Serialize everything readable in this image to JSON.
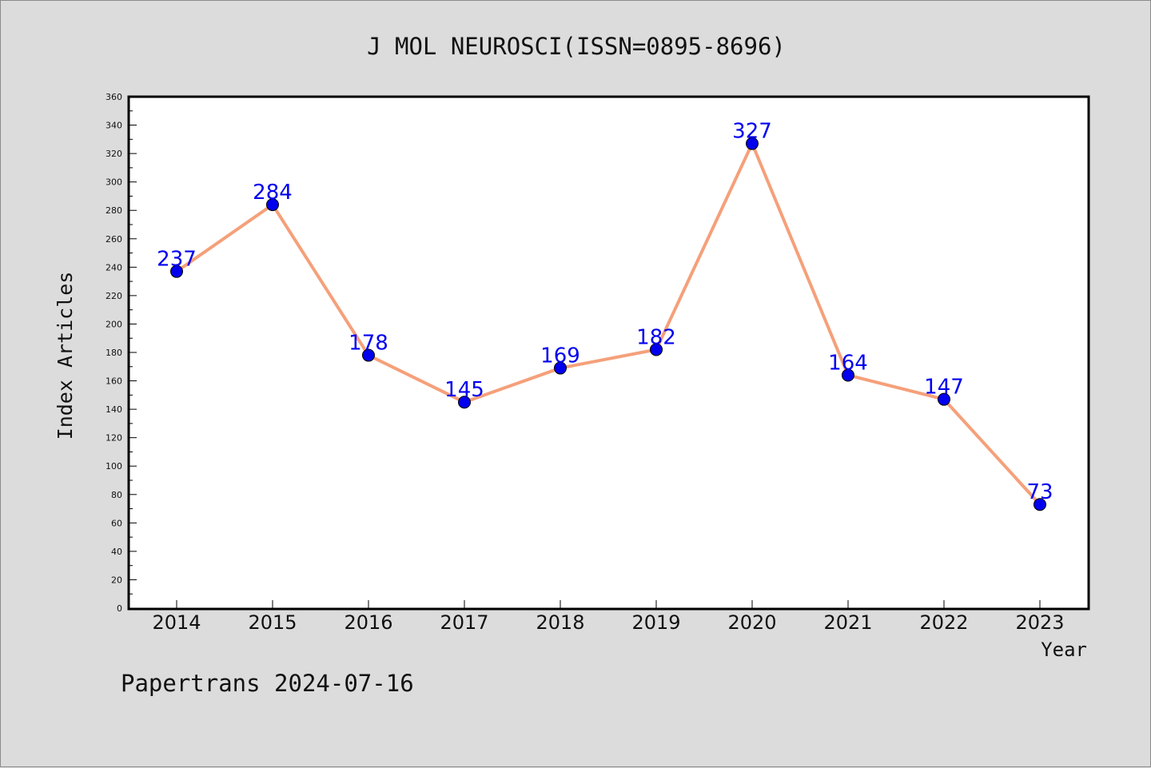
{
  "chart_data": {
    "type": "line",
    "title": "J MOL NEUROSCI(ISSN=0895-8696)",
    "xlabel": "Year",
    "ylabel": "Index Articles",
    "categories": [
      "2014",
      "2015",
      "2016",
      "2017",
      "2018",
      "2019",
      "2020",
      "2021",
      "2022",
      "2023"
    ],
    "values": [
      237,
      284,
      178,
      145,
      169,
      182,
      327,
      164,
      147,
      73
    ],
    "ylim": [
      0,
      360
    ],
    "ytick_step": 20,
    "ytick_labels": [
      "0",
      "20",
      "40",
      "60",
      "80",
      "100",
      "120",
      "140",
      "160",
      "180",
      "200",
      "220",
      "240",
      "260",
      "280",
      "300",
      "320",
      "340",
      "360"
    ],
    "grid": false,
    "line_color": "#f5a07a",
    "marker_color": "#0000ee",
    "label_color": "#0000ee"
  },
  "footer": "Papertrans 2024-07-16"
}
